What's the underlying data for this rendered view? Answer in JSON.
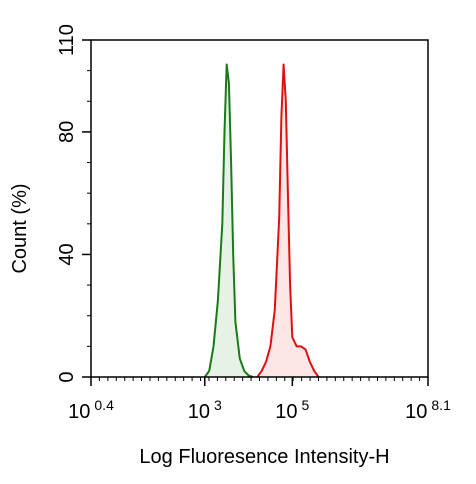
{
  "chart_data": {
    "type": "area",
    "title": "",
    "xlabel": "Log Fluoresence Intensity-H",
    "ylabel": "Count  (%)",
    "x_scale": "log10",
    "xlim_exponent": [
      0.4,
      8.1
    ],
    "ylim": [
      0,
      110
    ],
    "x_ticks": [
      {
        "base": "10",
        "exp": "0.4",
        "value": 0.4
      },
      {
        "base": "10",
        "exp": "3",
        "value": 3
      },
      {
        "base": "10",
        "exp": "5",
        "value": 5
      },
      {
        "base": "10",
        "exp": "8.1",
        "value": 8.1
      }
    ],
    "y_ticks": [
      {
        "label": "0",
        "value": 0
      },
      {
        "label": "40",
        "value": 40
      },
      {
        "label": "80",
        "value": 80
      },
      {
        "label": "110",
        "value": 110
      }
    ],
    "grid": false,
    "legend": "none",
    "series": [
      {
        "color": "#1a7a1a",
        "fill": "#e6f2e6",
        "x": [
          3.0,
          3.1,
          3.2,
          3.3,
          3.4,
          3.45,
          3.5,
          3.55,
          3.6,
          3.65,
          3.7,
          3.8,
          3.9,
          4.0,
          4.1
        ],
        "y": [
          0,
          2,
          10,
          25,
          50,
          80,
          102,
          96,
          70,
          40,
          18,
          6,
          2,
          0.5,
          0
        ]
      },
      {
        "color": "#e01010",
        "fill": "#fce6e6",
        "x": [
          4.2,
          4.3,
          4.4,
          4.5,
          4.6,
          4.7,
          4.75,
          4.8,
          4.85,
          4.9,
          4.95,
          5.0,
          5.1,
          5.2,
          5.3,
          5.4,
          5.5,
          5.6
        ],
        "y": [
          0,
          2,
          5,
          10,
          22,
          52,
          85,
          102,
          90,
          60,
          30,
          13,
          10,
          10,
          9,
          5,
          2,
          0
        ]
      }
    ]
  }
}
